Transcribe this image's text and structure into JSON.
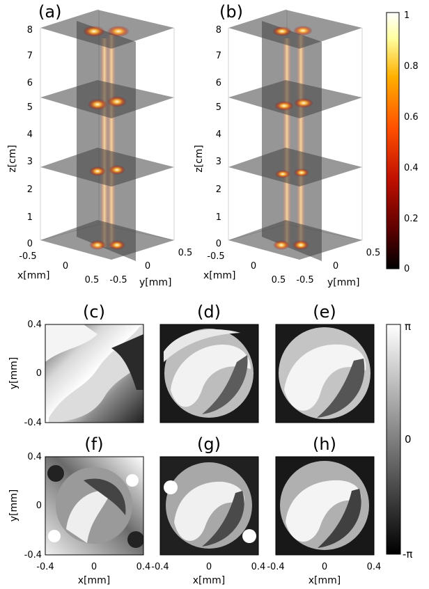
{
  "panels_3d": [
    {
      "label": "(a)",
      "z_axis_title": "z[cm]",
      "x_axis_title": "x[mm]",
      "y_axis_title": "y[mm]",
      "z_ticks": [
        "0",
        "1",
        "2",
        "3",
        "4",
        "5",
        "6",
        "7",
        "8"
      ],
      "x_ticks": [
        "-0.5",
        "0",
        "0.5"
      ],
      "y_ticks": [
        "-0.5",
        "0",
        "0.5"
      ]
    },
    {
      "label": "(b)",
      "z_axis_title": "z[cm]",
      "x_axis_title": "x[mm]",
      "y_axis_title": "y[mm]",
      "z_ticks": [
        "0",
        "1",
        "2",
        "3",
        "4",
        "5",
        "6",
        "7",
        "8"
      ],
      "x_ticks": [
        "-0.5",
        "0",
        "0.5"
      ],
      "y_ticks": [
        "-0.5",
        "0",
        "0.5"
      ]
    }
  ],
  "intensity_colorbar": {
    "ticks": [
      "0",
      "0.2",
      "0.4",
      "0.6",
      "0.8",
      "1"
    ],
    "colors": [
      "#000000",
      "#5a0000",
      "#c01000",
      "#ff5000",
      "#ffb000",
      "#ffffa0",
      "#ffffff"
    ]
  },
  "phase_panels": [
    {
      "label": "(c)",
      "y_axis_title": "y[mm]",
      "y_ticks": [
        "0.4",
        "0",
        "-0.4"
      ]
    },
    {
      "label": "(d)"
    },
    {
      "label": "(e)"
    },
    {
      "label": "(f)",
      "y_axis_title": "y[mm]",
      "y_ticks": [
        "0.4",
        "0",
        "-0.4"
      ],
      "x_axis_title": "x[mm]",
      "x_ticks": [
        "-0.4",
        "0",
        "0.4"
      ]
    },
    {
      "label": "(g)",
      "x_axis_title": "x[mm]",
      "x_ticks": [
        "-0.4",
        "0",
        "0.4"
      ]
    },
    {
      "label": "(h)",
      "x_axis_title": "x[mm]",
      "x_ticks": [
        "-0.4",
        "0",
        "0.4"
      ]
    }
  ],
  "phase_colorbar": {
    "ticks": [
      "π",
      "0",
      "-π"
    ]
  }
}
